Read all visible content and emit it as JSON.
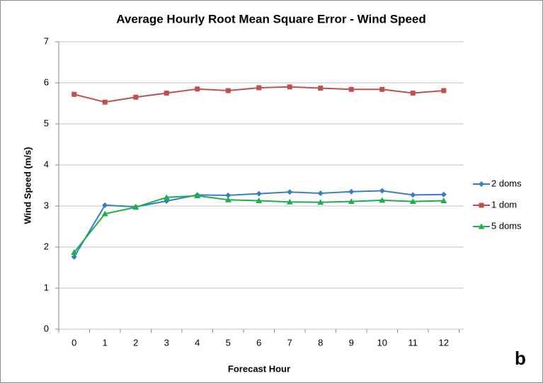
{
  "chart_data": {
    "type": "line",
    "title": "Average Hourly Root Mean Square Error - Wind Speed",
    "x_label": "Forecast Hour",
    "y_label": "Wind Speed (m/s)",
    "annotation": "b",
    "categories": [
      "0",
      "1",
      "2",
      "3",
      "4",
      "5",
      "6",
      "7",
      "8",
      "9",
      "10",
      "11",
      "12"
    ],
    "series": [
      {
        "name": "2 doms",
        "color": "#3b7dc4",
        "marker": "diamond",
        "values": [
          1.76,
          3.02,
          2.98,
          3.12,
          3.27,
          3.26,
          3.3,
          3.34,
          3.31,
          3.35,
          3.37,
          3.27,
          3.28
        ]
      },
      {
        "name": "1 dom",
        "color": "#c0504d",
        "marker": "square",
        "values": [
          5.72,
          5.53,
          5.65,
          5.75,
          5.85,
          5.81,
          5.88,
          5.9,
          5.87,
          5.84,
          5.84,
          5.75,
          5.81
        ]
      },
      {
        "name": "5 doms",
        "color": "#1fae4f",
        "marker": "triangle",
        "values": [
          1.87,
          2.81,
          2.97,
          3.21,
          3.25,
          3.15,
          3.13,
          3.1,
          3.09,
          3.11,
          3.14,
          3.11,
          3.13
        ]
      }
    ],
    "ylim": [
      0,
      7
    ],
    "yticks": [
      0,
      1,
      2,
      3,
      4,
      5,
      6,
      7
    ],
    "grid": true,
    "legend": "right"
  }
}
